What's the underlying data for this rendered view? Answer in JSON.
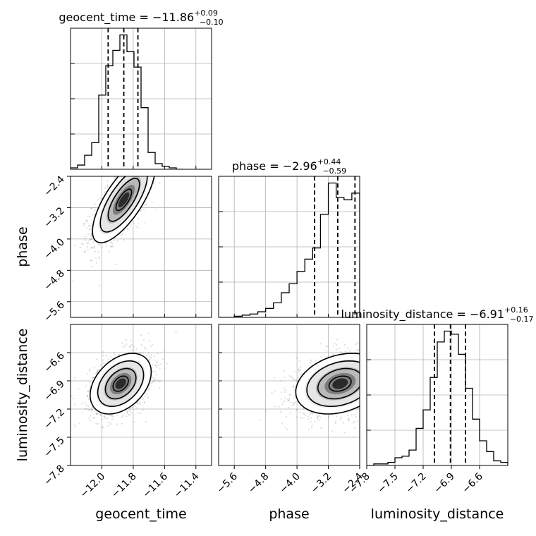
{
  "chart_data": {
    "type": "corner",
    "parameters": [
      {
        "key": "geocent_time",
        "label": "geocent_time",
        "range": [
          -12.2,
          -11.3
        ],
        "ticks": [
          -12.0,
          -11.8,
          -11.6,
          -11.4
        ],
        "tick_labels": [
          "−12.0",
          "−11.8",
          "−11.6",
          "−11.4"
        ],
        "title": {
          "main": "geocent_time = −11.86",
          "upper": "+0.09",
          "lower": "−0.10"
        },
        "quantiles": [
          -11.96,
          -11.86,
          -11.77
        ],
        "hist_edges": [
          -12.2,
          -12.155,
          -12.11,
          -12.065,
          -12.02,
          -11.975,
          -11.93,
          -11.885,
          -11.84,
          -11.795,
          -11.75,
          -11.705,
          -11.66,
          -11.615,
          -11.57,
          -11.525,
          -11.48
        ],
        "hist_counts": [
          1,
          3,
          10,
          19,
          53,
          74,
          85,
          96,
          84,
          73,
          44,
          12,
          4,
          2,
          1,
          0
        ]
      },
      {
        "key": "phase",
        "label": "phase",
        "range": [
          -6.0,
          -2.4
        ],
        "ticks": [
          -5.6,
          -4.8,
          -4.0,
          -3.2,
          -2.4
        ],
        "tick_labels": [
          "−5.6",
          "−4.8",
          "−4.0",
          "−3.2",
          "−2.4"
        ],
        "title": {
          "main": "phase = −2.96",
          "upper": "+0.44",
          "lower": "−0.59"
        },
        "quantiles": [
          -3.55,
          -2.96,
          -2.52
        ],
        "hist_edges": [
          -6.0,
          -5.8,
          -5.6,
          -5.4,
          -5.2,
          -5.0,
          -4.8,
          -4.6,
          -4.4,
          -4.2,
          -4.0,
          -3.8,
          -3.6,
          -3.4,
          -3.2,
          -3.0,
          -2.8,
          -2.6,
          -2.4
        ],
        "hist_counts": [
          0,
          0,
          1,
          2,
          3,
          5,
          8,
          13,
          22,
          30,
          41,
          52,
          62,
          92,
          120,
          107,
          105,
          111
        ]
      },
      {
        "key": "luminosity_distance",
        "label": "luminosity_distance",
        "range": [
          -7.8,
          -6.3
        ],
        "ticks": [
          -7.8,
          -7.5,
          -7.2,
          -6.9,
          -6.6
        ],
        "tick_labels": [
          "−7.8",
          "−7.5",
          "−7.2",
          "−6.9",
          "−6.6"
        ],
        "title": {
          "main": "luminosity_distance = −6.91",
          "upper": "+0.16",
          "lower": "−0.17"
        },
        "quantiles": [
          -7.08,
          -6.91,
          -6.75
        ],
        "hist_edges": [
          -7.8,
          -7.725,
          -7.65,
          -7.575,
          -7.5,
          -7.425,
          -7.35,
          -7.275,
          -7.2,
          -7.125,
          -7.05,
          -6.975,
          -6.9,
          -6.825,
          -6.75,
          -6.675,
          -6.6,
          -6.525,
          -6.45,
          -6.375,
          -6.3
        ],
        "hist_counts": [
          0,
          1,
          1,
          2,
          5,
          6,
          10,
          24,
          36,
          57,
          80,
          87,
          85,
          72,
          50,
          30,
          16,
          9,
          3,
          2
        ]
      }
    ],
    "pairs": [
      {
        "x": "geocent_time",
        "y": "phase",
        "peak": [
          -11.86,
          -3.0
        ],
        "cov": [
          [
            0.01,
            0.04
          ],
          [
            0.04,
            0.3
          ]
        ]
      },
      {
        "x": "geocent_time",
        "y": "luminosity_distance",
        "peak": [
          -11.88,
          -6.93
        ],
        "cov": [
          [
            0.0095,
            0.006
          ],
          [
            0.006,
            0.026
          ]
        ]
      },
      {
        "x": "phase",
        "y": "luminosity_distance",
        "peak": [
          -2.9,
          -6.93
        ],
        "cov": [
          [
            0.32,
            0.025
          ],
          [
            0.025,
            0.026
          ]
        ]
      }
    ],
    "grid": true
  }
}
